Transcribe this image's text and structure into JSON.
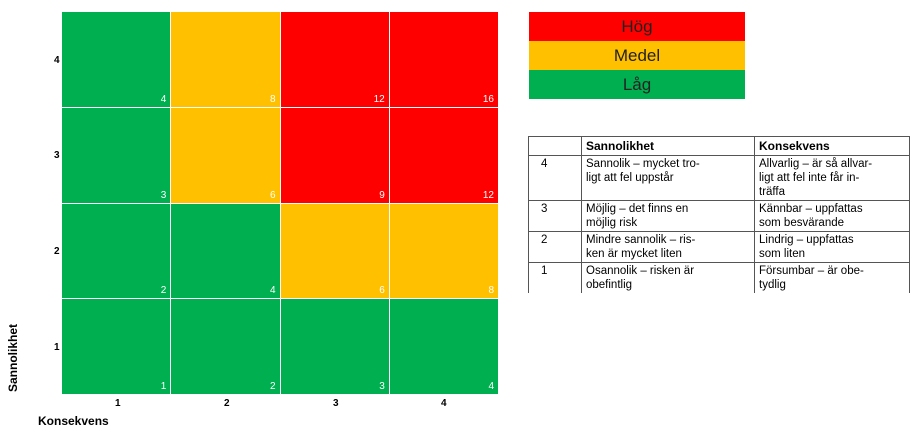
{
  "colors": {
    "hog": "#ff0000",
    "medel": "#ffc000",
    "lag": "#00b050"
  },
  "matrix": {
    "rows": [
      {
        "level": "4",
        "cells": [
          {
            "score": "4",
            "level": "lag"
          },
          {
            "score": "8",
            "level": "medel"
          },
          {
            "score": "12",
            "level": "hog"
          },
          {
            "score": "16",
            "level": "hog"
          }
        ]
      },
      {
        "level": "3",
        "cells": [
          {
            "score": "3",
            "level": "lag"
          },
          {
            "score": "6",
            "level": "medel"
          },
          {
            "score": "9",
            "level": "hog"
          },
          {
            "score": "12",
            "level": "hog"
          }
        ]
      },
      {
        "level": "2",
        "cells": [
          {
            "score": "2",
            "level": "lag"
          },
          {
            "score": "4",
            "level": "lag"
          },
          {
            "score": "6",
            "level": "medel"
          },
          {
            "score": "8",
            "level": "medel"
          }
        ]
      },
      {
        "level": "1",
        "cells": [
          {
            "score": "1",
            "level": "lag"
          },
          {
            "score": "2",
            "level": "lag"
          },
          {
            "score": "3",
            "level": "lag"
          },
          {
            "score": "4",
            "level": "lag"
          }
        ]
      }
    ],
    "x_ticks": [
      "1",
      "2",
      "3",
      "4"
    ],
    "y_axis_label": "Sannolikhet",
    "x_axis_label": "Konsekvens"
  },
  "legend": [
    {
      "label": "Hög",
      "level": "hog"
    },
    {
      "label": "Medel",
      "level": "medel"
    },
    {
      "label": "Låg",
      "level": "lag"
    }
  ],
  "table": {
    "headers": [
      "",
      "Sannolikhet",
      "Konsekvens"
    ],
    "rows": [
      {
        "num": "4",
        "prob": "Sannolik – mycket tro-\nligt att fel uppstår",
        "cons": "Allvarlig – är så allvar-\nligt att fel inte får in-\nträffa"
      },
      {
        "num": "3",
        "prob": "Möjlig – det finns en\nmöjlig risk",
        "cons": "Kännbar – uppfattas\nsom besvärande"
      },
      {
        "num": "2",
        "prob": "Mindre sannolik – ris-\nken är mycket liten",
        "cons": "Lindrig – uppfattas\nsom liten"
      },
      {
        "num": "1",
        "prob": "Osannolik – risken är\nobefintlig",
        "cons": "Försumbar – är obe-\ntydlig"
      }
    ]
  }
}
